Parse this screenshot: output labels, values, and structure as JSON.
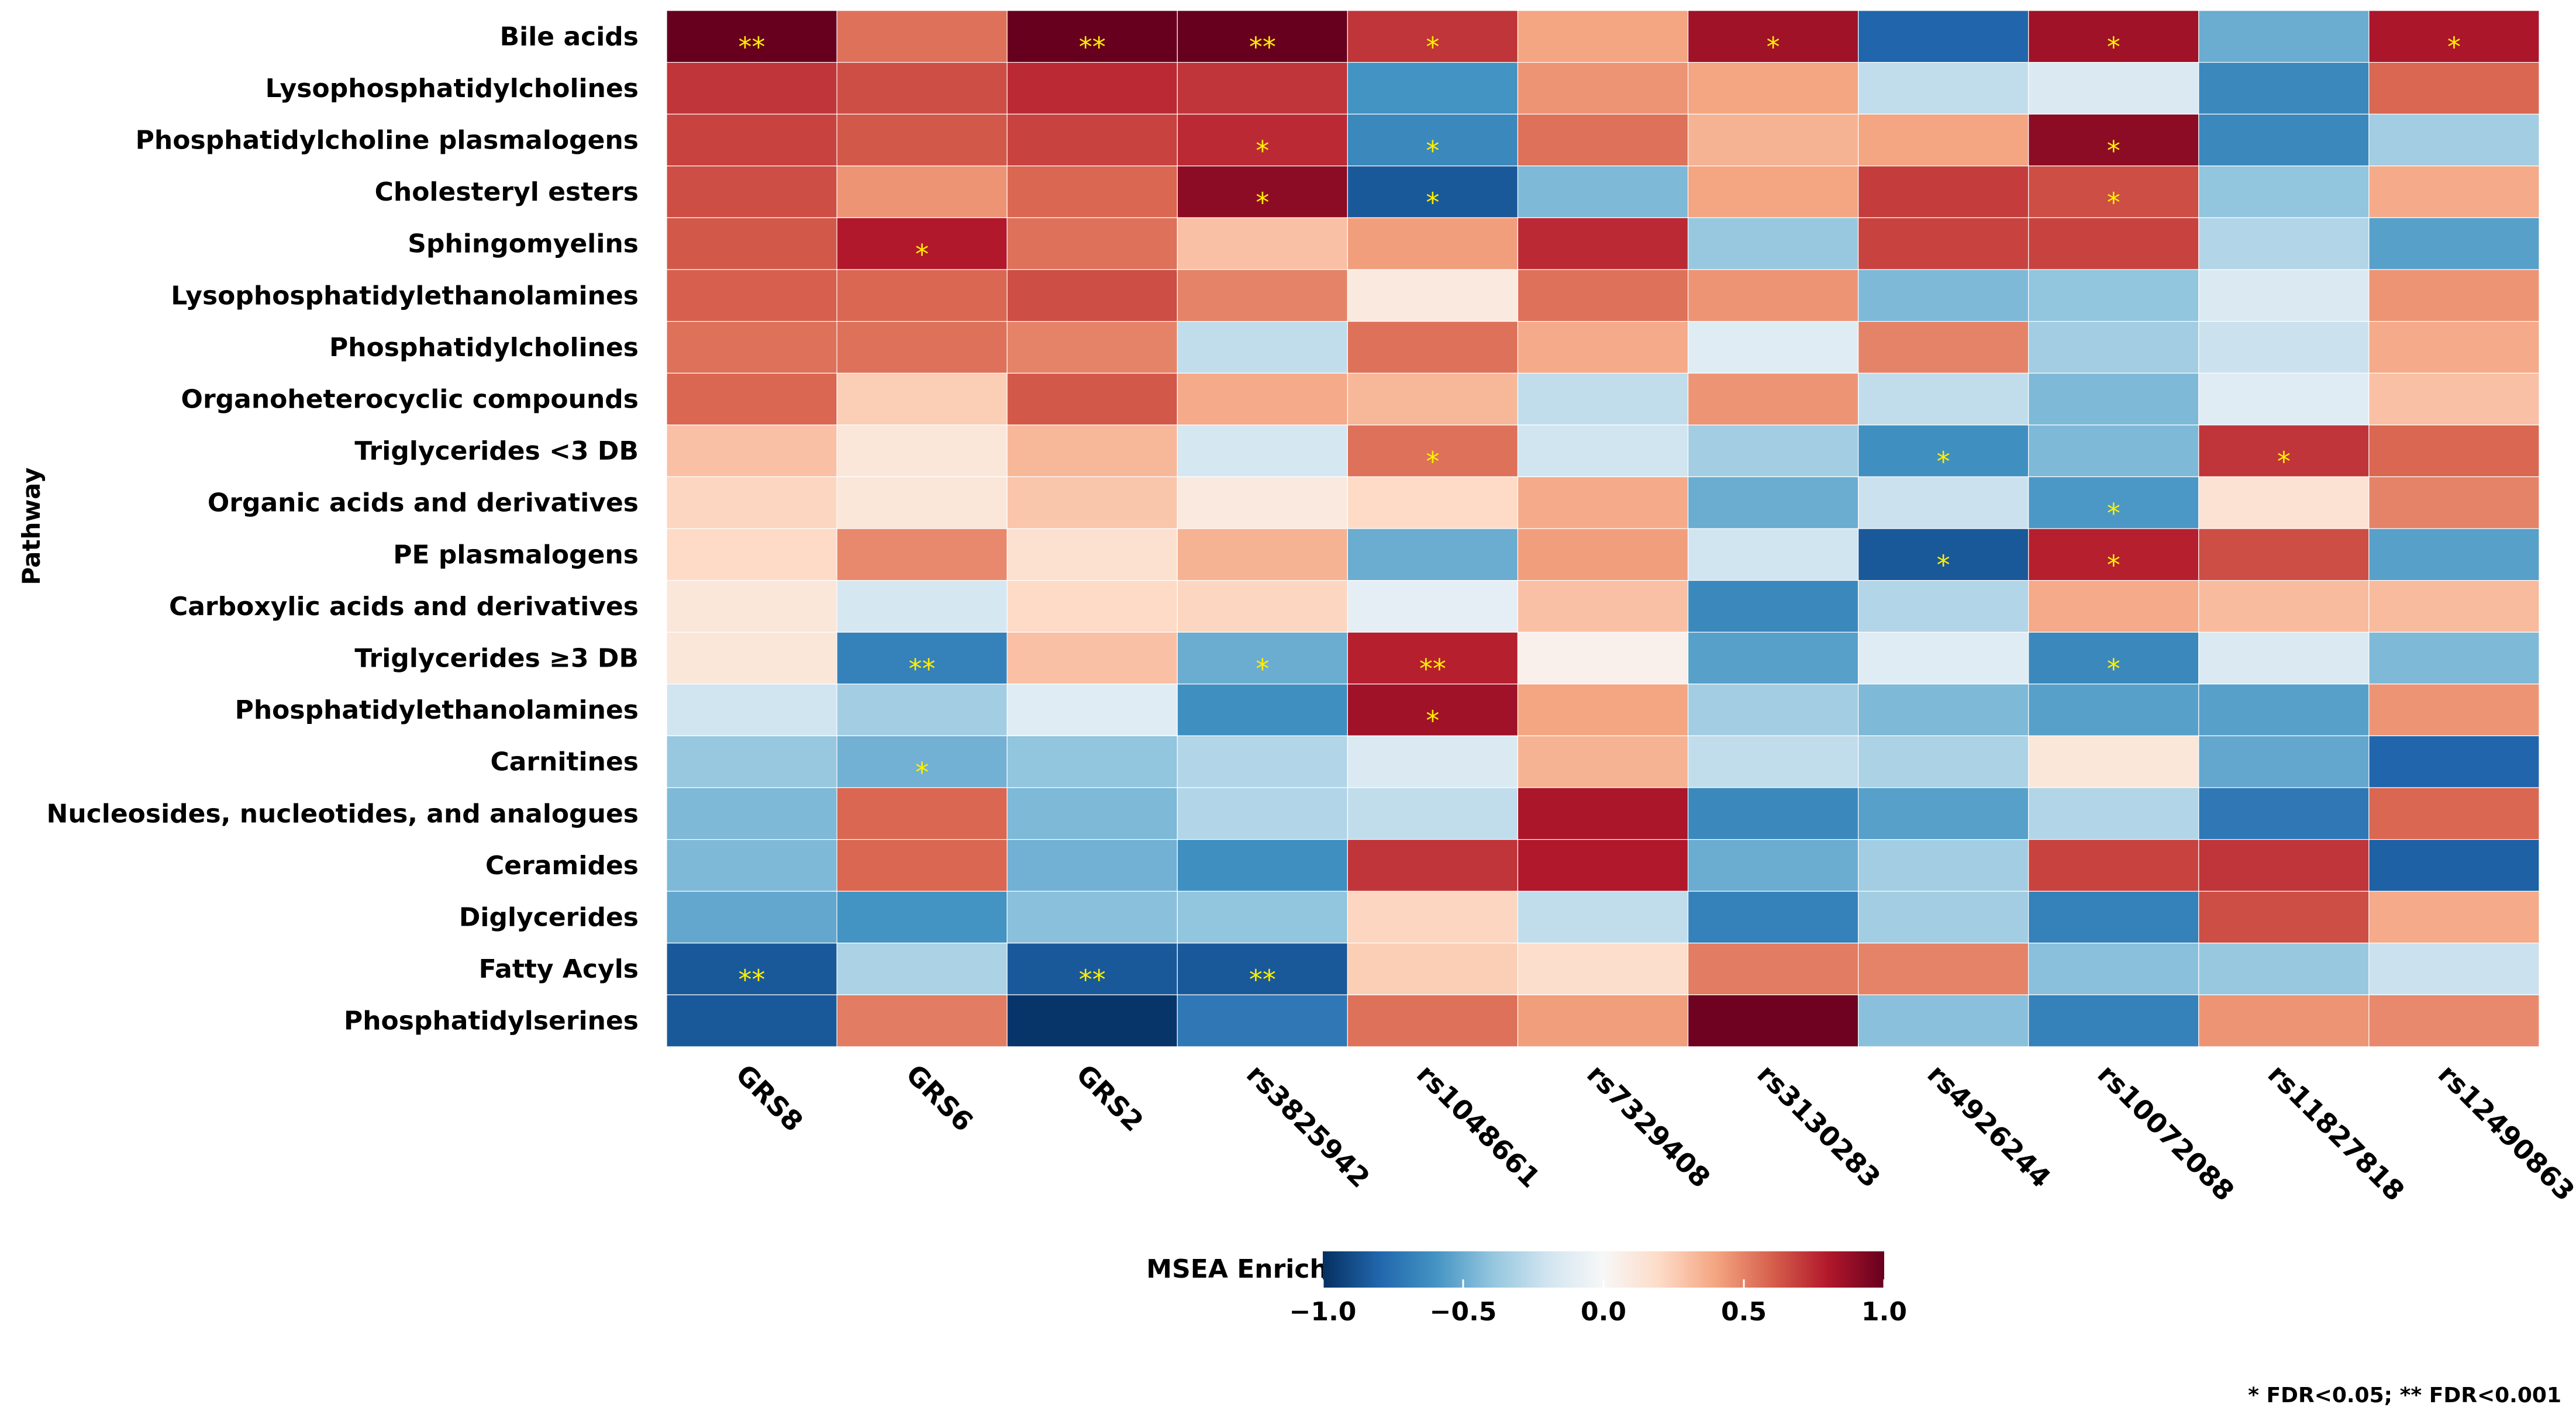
{
  "chart_data": {
    "type": "heatmap",
    "ylabel": "Pathway",
    "xlabel": "",
    "columns": [
      "GRS8",
      "GRS6",
      "GRS2",
      "rs3825942",
      "rs1048661",
      "rs7329408",
      "rs3130283",
      "rs4926244",
      "rs10072088",
      "rs11827818",
      "rs12490863"
    ],
    "rows": [
      "Bile acids",
      "Lysophosphatidylcholines",
      "Phosphatidylcholine plasmalogens",
      "Cholesteryl esters",
      "Sphingomyelins",
      "Lysophosphatidylethanolamines",
      "Phosphatidylcholines",
      "Organoheterocyclic compounds",
      "Triglycerides <3 DB",
      "Organic acids and derivatives",
      "PE plasmalogens",
      "Carboxylic acids and derivatives",
      "Triglycerides ≥3 DB",
      "Phosphatidylethanolamines",
      "Carnitines",
      "Nucleosides, nucleotides, and analogues",
      "Ceramides",
      "Diglycerides",
      "Fatty Acyls",
      "Phosphatidylserines"
    ],
    "values": [
      [
        1.0,
        0.55,
        1.0,
        1.0,
        0.72,
        0.4,
        0.85,
        -0.8,
        0.85,
        -0.5,
        0.82
      ],
      [
        0.72,
        0.65,
        0.75,
        0.72,
        -0.6,
        0.45,
        0.4,
        -0.25,
        -0.15,
        -0.65,
        0.58
      ],
      [
        0.68,
        0.62,
        0.68,
        0.75,
        -0.65,
        0.55,
        0.35,
        0.4,
        0.9,
        -0.65,
        -0.35
      ],
      [
        0.65,
        0.45,
        0.58,
        0.9,
        -0.85,
        -0.45,
        0.4,
        0.7,
        0.65,
        -0.4,
        0.38
      ],
      [
        0.62,
        0.8,
        0.55,
        0.3,
        0.42,
        0.75,
        -0.38,
        0.68,
        0.68,
        -0.3,
        -0.55
      ],
      [
        0.6,
        0.58,
        0.65,
        0.5,
        0.1,
        0.55,
        0.45,
        -0.45,
        -0.4,
        -0.15,
        0.45
      ],
      [
        0.55,
        0.55,
        0.5,
        -0.25,
        0.55,
        0.38,
        -0.12,
        0.5,
        -0.35,
        -0.22,
        0.38
      ],
      [
        0.58,
        0.25,
        0.62,
        0.38,
        0.33,
        -0.25,
        0.45,
        -0.25,
        -0.45,
        -0.12,
        0.3
      ],
      [
        0.3,
        0.12,
        0.33,
        -0.18,
        0.55,
        -0.2,
        -0.35,
        -0.62,
        -0.45,
        0.72,
        0.58
      ],
      [
        0.22,
        0.12,
        0.28,
        0.1,
        0.2,
        0.38,
        -0.5,
        -0.22,
        -0.58,
        0.15,
        0.5
      ],
      [
        0.2,
        0.48,
        0.16,
        0.35,
        -0.5,
        0.42,
        -0.2,
        -0.85,
        0.78,
        0.65,
        -0.55
      ],
      [
        0.12,
        -0.18,
        0.2,
        0.22,
        -0.1,
        0.3,
        -0.65,
        -0.3,
        0.38,
        0.32,
        0.32
      ],
      [
        0.12,
        -0.68,
        0.3,
        -0.5,
        0.78,
        0.05,
        -0.55,
        -0.12,
        -0.65,
        -0.15,
        -0.45
      ],
      [
        -0.2,
        -0.35,
        -0.12,
        -0.62,
        0.85,
        0.4,
        -0.35,
        -0.45,
        -0.55,
        -0.55,
        0.45
      ],
      [
        -0.38,
        -0.48,
        -0.4,
        -0.3,
        -0.15,
        0.35,
        -0.25,
        -0.32,
        0.12,
        -0.52,
        -0.8
      ],
      [
        -0.45,
        0.58,
        -0.45,
        -0.3,
        -0.25,
        0.82,
        -0.65,
        -0.55,
        -0.3,
        -0.72,
        0.58
      ],
      [
        -0.45,
        0.58,
        -0.48,
        -0.62,
        0.72,
        0.8,
        -0.5,
        -0.35,
        0.68,
        0.72,
        -0.82
      ],
      [
        -0.52,
        -0.6,
        -0.42,
        -0.4,
        0.22,
        -0.25,
        -0.68,
        -0.35,
        -0.68,
        0.65,
        0.38
      ],
      [
        -0.85,
        -0.32,
        -0.85,
        -0.85,
        0.25,
        0.18,
        0.52,
        0.5,
        -0.42,
        -0.38,
        -0.22
      ],
      [
        -0.85,
        0.52,
        -0.98,
        -0.72,
        0.55,
        0.42,
        0.98,
        -0.42,
        -0.68,
        0.45,
        0.48
      ]
    ],
    "significance": [
      [
        "**",
        "",
        "**",
        "**",
        "*",
        "",
        "*",
        "",
        "*",
        "",
        "*"
      ],
      [
        "",
        "",
        "",
        "",
        "",
        "",
        "",
        "",
        "",
        "",
        ""
      ],
      [
        "",
        "",
        "",
        "*",
        "*",
        "",
        "",
        "",
        "*",
        "",
        ""
      ],
      [
        "",
        "",
        "",
        "*",
        "*",
        "",
        "",
        "",
        "*",
        "",
        ""
      ],
      [
        "",
        "*",
        "",
        "",
        "",
        "",
        "",
        "",
        "",
        "",
        ""
      ],
      [
        "",
        "",
        "",
        "",
        "",
        "",
        "",
        "",
        "",
        "",
        ""
      ],
      [
        "",
        "",
        "",
        "",
        "",
        "",
        "",
        "",
        "",
        "",
        ""
      ],
      [
        "",
        "",
        "",
        "",
        "",
        "",
        "",
        "",
        "",
        "",
        ""
      ],
      [
        "",
        "",
        "",
        "",
        "*",
        "",
        "",
        "*",
        "",
        "*",
        ""
      ],
      [
        "",
        "",
        "",
        "",
        "",
        "",
        "",
        "",
        "*",
        "",
        ""
      ],
      [
        "",
        "",
        "",
        "",
        "",
        "",
        "",
        "*",
        "*",
        "",
        ""
      ],
      [
        "",
        "",
        "",
        "",
        "",
        "",
        "",
        "",
        "",
        "",
        ""
      ],
      [
        "",
        "**",
        "",
        "*",
        "**",
        "",
        "",
        "",
        "*",
        "",
        ""
      ],
      [
        "",
        "",
        "",
        "",
        "*",
        "",
        "",
        "",
        "",
        "",
        ""
      ],
      [
        "",
        "*",
        "",
        "",
        "",
        "",
        "",
        "",
        "",
        "",
        ""
      ],
      [
        "",
        "",
        "",
        "",
        "",
        "",
        "",
        "",
        "",
        "",
        ""
      ],
      [
        "",
        "",
        "",
        "",
        "",
        "",
        "",
        "",
        "",
        "",
        ""
      ],
      [
        "",
        "",
        "",
        "",
        "",
        "",
        "",
        "",
        "",
        "",
        ""
      ],
      [
        "**",
        "",
        "**",
        "**",
        "",
        "",
        "",
        "",
        "",
        "",
        ""
      ],
      [
        "",
        "",
        "",
        "",
        "",
        "",
        "",
        "",
        "",
        "",
        ""
      ]
    ],
    "color_scale": {
      "title": "MSEA Enrichment Score",
      "range": [
        -1.0,
        1.0
      ],
      "ticks": [
        -1.0,
        -0.5,
        0.0,
        0.5,
        1.0
      ],
      "tick_labels": [
        "−1.0",
        "−0.5",
        "0.0",
        "0.5",
        "1.0"
      ],
      "colors": [
        "#053061",
        "#2166ac",
        "#4393c3",
        "#92c5de",
        "#d1e5f0",
        "#f7f7f7",
        "#fddbc7",
        "#f4a582",
        "#d6604d",
        "#b2182b",
        "#67001f"
      ]
    },
    "significance_color": "#ffee00",
    "footnote": "* FDR<0.05; ** FDR<0.001"
  }
}
